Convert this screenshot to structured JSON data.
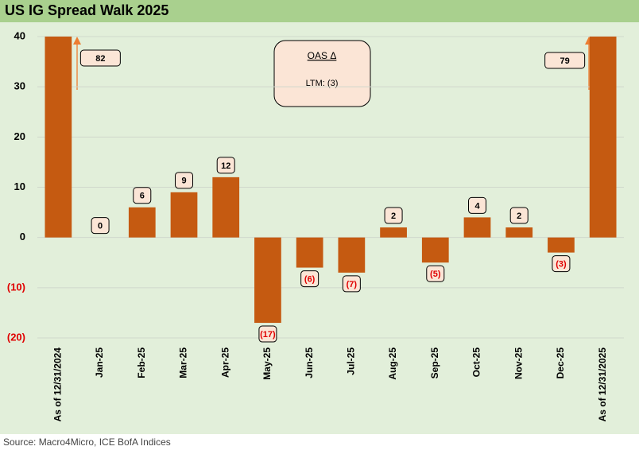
{
  "chart_data": {
    "type": "bar",
    "title": "US IG Spread Walk 2025",
    "categories": [
      "As of 12/31/2024",
      "Jan-25",
      "Feb-25",
      "Mar-25",
      "Apr-25",
      "May-25",
      "Jun-25",
      "Jul-25",
      "Aug-25",
      "Sep-25",
      "Oct-25",
      "Nov-25",
      "Dec-25",
      "As of 12/31/2025"
    ],
    "values": [
      82,
      0,
      6,
      9,
      12,
      -17,
      -6,
      -7,
      2,
      -5,
      4,
      2,
      -3,
      79
    ],
    "value_labels": [
      "82",
      "0",
      "6",
      "9",
      "12",
      "(17)",
      "(6)",
      "(7)",
      "2",
      "(5)",
      "4",
      "2",
      "(3)",
      "79"
    ],
    "color": "#c55a11",
    "ylim": [
      -20,
      40
    ],
    "yticks": [
      {
        "value": -20,
        "label": "(20)"
      },
      {
        "value": -10,
        "label": "(10)"
      },
      0,
      10,
      20,
      30,
      40
    ],
    "grid": true,
    "annotation": {
      "title": "OAS Δ",
      "text": "LTM: (3)"
    },
    "source": "Source: Macro4Micro, ICE BofA Indices"
  }
}
